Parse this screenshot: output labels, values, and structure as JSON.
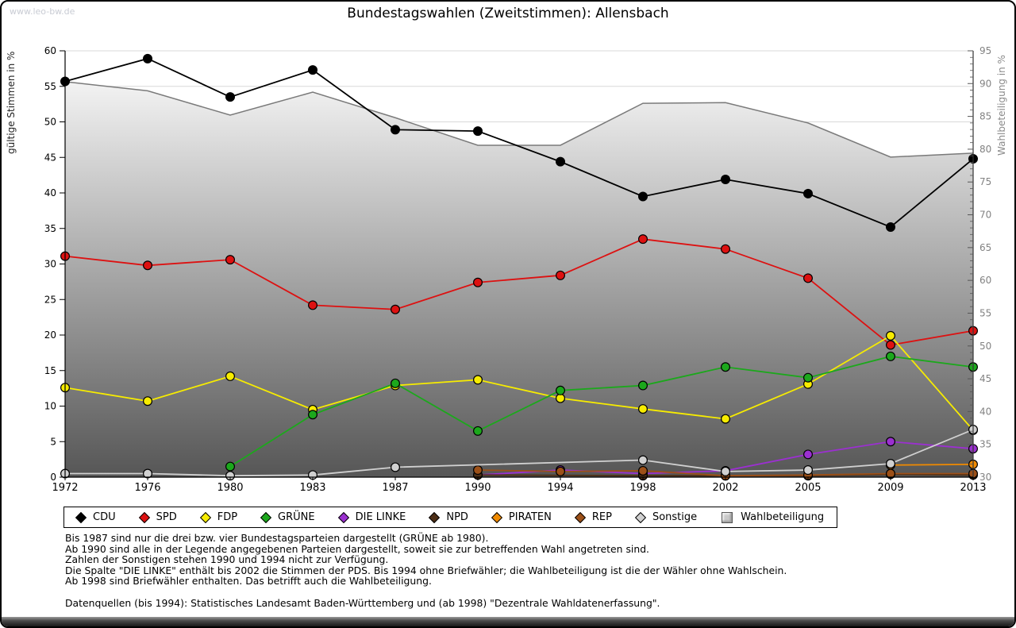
{
  "watermark": "www.leo-bw.de",
  "title": "Bundestagswahlen (Zweitstimmen): Allensbach",
  "chart_data": {
    "type": "line",
    "x": [
      1972,
      1976,
      1980,
      1983,
      1987,
      1990,
      1994,
      1998,
      2002,
      2005,
      2009,
      2013
    ],
    "left_axis": {
      "label": "gültige Stimmen in %",
      "min": 0,
      "max": 60,
      "tick_step": 5
    },
    "right_axis": {
      "label": "Wahlbeteiligung in %",
      "min": 30,
      "max": 95,
      "tick_step": 5
    },
    "grid": true,
    "legend_position": "bottom",
    "series": [
      {
        "name": "CDU",
        "color": "#000000",
        "axis": "left",
        "values": [
          55.7,
          58.9,
          53.5,
          57.3,
          48.9,
          48.7,
          44.4,
          39.5,
          41.9,
          39.9,
          35.2,
          44.8
        ]
      },
      {
        "name": "SPD",
        "color": "#dd1111",
        "axis": "left",
        "values": [
          31.1,
          29.8,
          30.6,
          24.2,
          23.6,
          27.4,
          28.4,
          33.5,
          32.1,
          28.0,
          18.6,
          20.6
        ]
      },
      {
        "name": "FDP",
        "color": "#f7ec00",
        "axis": "left",
        "values": [
          12.6,
          10.7,
          14.2,
          9.5,
          12.9,
          13.7,
          11.1,
          9.6,
          8.2,
          13.1,
          19.9,
          6.6
        ]
      },
      {
        "name": "GRÜNE",
        "color": "#1ca81c",
        "axis": "left",
        "values": [
          null,
          null,
          1.5,
          8.8,
          13.2,
          6.5,
          12.2,
          12.9,
          15.5,
          14.0,
          17.0,
          15.5
        ]
      },
      {
        "name": "DIE LINKE",
        "color": "#9b30d0",
        "axis": "left",
        "values": [
          null,
          null,
          null,
          null,
          null,
          0.3,
          1.0,
          0.5,
          0.9,
          3.2,
          5.0,
          4.0
        ]
      },
      {
        "name": "NPD",
        "color": "#4d2e16",
        "axis": "left",
        "values": [
          null,
          null,
          null,
          null,
          null,
          0.3,
          null,
          0.2,
          0.2,
          0.2,
          0.4,
          0.3
        ]
      },
      {
        "name": "PIRATEN",
        "color": "#f08a00",
        "axis": "left",
        "values": [
          null,
          null,
          null,
          null,
          null,
          null,
          null,
          null,
          null,
          null,
          1.7,
          1.8
        ]
      },
      {
        "name": "REP",
        "color": "#9c5018",
        "axis": "left",
        "values": [
          null,
          null,
          null,
          null,
          null,
          1.0,
          0.8,
          0.9,
          0.2,
          0.3,
          0.5,
          0.5
        ]
      },
      {
        "name": "Sonstige",
        "color": "#d0d0d0",
        "axis": "left",
        "values": [
          0.5,
          0.5,
          0.2,
          0.3,
          1.4,
          null,
          null,
          2.4,
          0.8,
          1.0,
          1.9,
          6.7
        ]
      },
      {
        "name": "Wahlbeteiligung",
        "color": "#7a7a7a",
        "axis": "right",
        "area": true,
        "values": [
          90.3,
          88.9,
          85.2,
          88.7,
          84.8,
          80.6,
          80.6,
          87.0,
          87.1,
          84.0,
          78.8,
          79.4
        ]
      }
    ]
  },
  "footnotes": [
    "Bis 1987 sind nur die drei bzw. vier Bundestagsparteien dargestellt (GRÜNE ab 1980).",
    "Ab 1990 sind alle in der Legende angegebenen Parteien dargestellt, soweit sie zur betreffenden Wahl angetreten sind.",
    "Zahlen der Sonstigen stehen 1990 und 1994 nicht zur Verfügung.",
    "Die Spalte \"DIE LINKE\" enthält bis 2002 die Stimmen der PDS. Bis 1994 ohne Briefwähler; die Wahlbeteiligung ist die der Wähler ohne Wahlschein.",
    "Ab 1998 sind Briefwähler enthalten. Das betrifft auch die Wahlbeteiligung.",
    "",
    "Datenquellen (bis 1994): Statistisches Landesamt Baden-Württemberg und (ab 1998) \"Dezentrale Wahldatenerfassung\"."
  ]
}
